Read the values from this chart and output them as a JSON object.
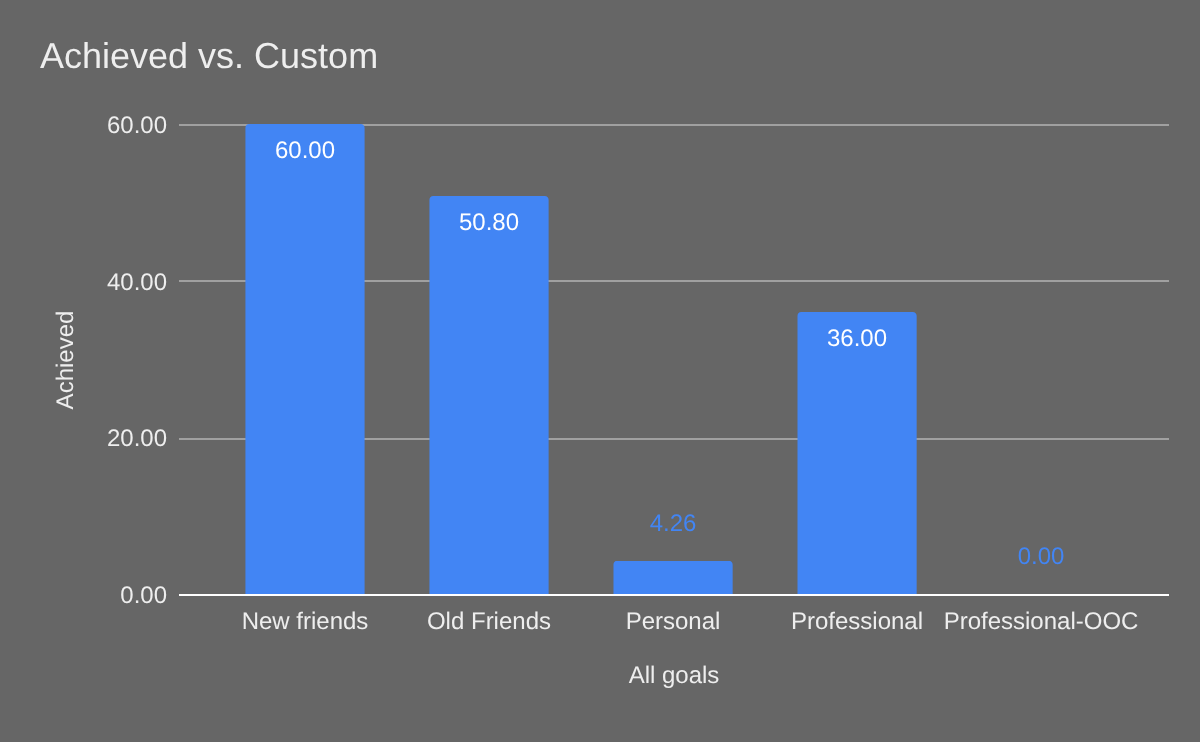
{
  "chart_data": {
    "type": "bar",
    "title": "Achieved vs. Custom",
    "xlabel": "All goals",
    "ylabel": "Achieved",
    "categories": [
      "New friends",
      "Old Friends",
      "Personal",
      "Professional",
      "Professional-OOC"
    ],
    "values": [
      60,
      50.8,
      4.26,
      36,
      0
    ],
    "value_labels": [
      "60.00",
      "50.80",
      "4.26",
      "36.00",
      "0.00"
    ],
    "color": "#4285f4",
    "ylim": [
      0,
      60
    ],
    "yticks": [
      {
        "value": 0,
        "label": "0.00"
      },
      {
        "value": 20,
        "label": "20.00"
      },
      {
        "value": 40,
        "label": "40.00"
      },
      {
        "value": 60,
        "label": "60.00"
      }
    ],
    "grid": "y"
  }
}
